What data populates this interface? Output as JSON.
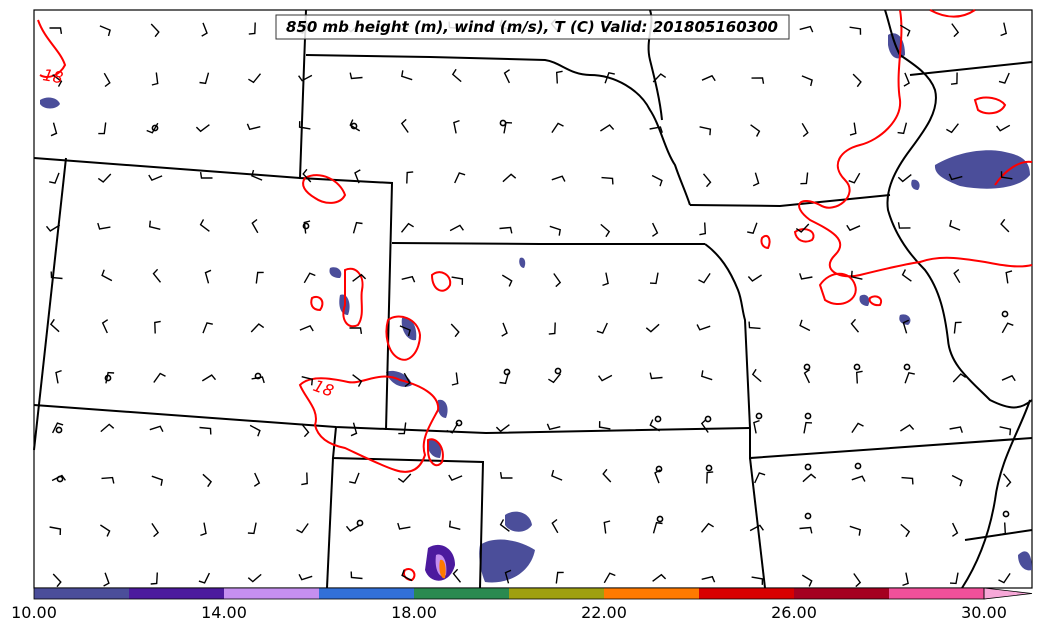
{
  "title": "850 mb height (m), wind (m/s), T (C) Valid: 201805160300",
  "contour_labels": [
    "18",
    "18"
  ],
  "colorbar": {
    "tick_labels": [
      "10.00",
      "14.00",
      "18.00",
      "22.00",
      "26.00",
      "30.00"
    ],
    "colors": [
      "#4b4e9a",
      "#4c1a9e",
      "#c58ff0",
      "#3270d8",
      "#2a8a50",
      "#9fa010",
      "#ff7a00",
      "#d80000",
      "#a50020",
      "#f0509a",
      "#f7a8d8"
    ]
  },
  "colors": {
    "temperature_contour": "#ff0000",
    "boundary": "#000000",
    "fill_primary": "#4b4e9a"
  }
}
